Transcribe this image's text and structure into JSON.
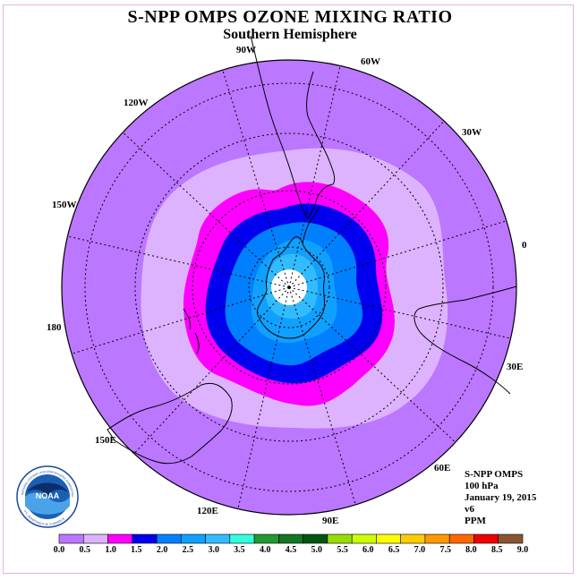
{
  "header": {
    "title": "S-NPP OMPS OZONE MIXING RATIO",
    "subtitle": "Southern Hemisphere"
  },
  "map": {
    "projection": "south polar stereographic",
    "longitude_labels": [
      "90W",
      "60W",
      "30W",
      "0",
      "30E",
      "60E",
      "90E",
      "120E",
      "150E",
      "180",
      "150W",
      "120W"
    ],
    "colors": {
      "outer": "#bb77ff",
      "band_0_5": "#ddb3ff",
      "band_1_0": "#ff00ff",
      "band_1_5": "#0000ee",
      "band_2_0": "#0080ff",
      "band_2_5": "#10a0ff",
      "band_3_0": "#33bbff",
      "pole": "#ffffff"
    }
  },
  "info": {
    "instrument": "S-NPP OMPS",
    "level": "100 hPa",
    "date": "January 19, 2015",
    "version": "v6",
    "units": "PPM"
  },
  "logo": {
    "text": "NOAA",
    "ring_text": "NATIONAL OCEANIC AND ATMOSPHERIC ADMINISTRATION",
    "ring_text_bottom": "U.S. DEPARTMENT OF COMMERCE"
  },
  "colorbar": {
    "labels": [
      "0.0",
      "0.5",
      "1.0",
      "1.5",
      "2.0",
      "2.5",
      "3.0",
      "3.5",
      "4.0",
      "4.5",
      "5.0",
      "5.5",
      "6.0",
      "6.5",
      "7.0",
      "7.5",
      "8.0",
      "8.5",
      "9.0"
    ],
    "colors": [
      "#bb77ff",
      "#ddb3ff",
      "#ff00ff",
      "#0000ee",
      "#0080ff",
      "#10a0ff",
      "#33bbff",
      "#33ffdd",
      "#229933",
      "#117722",
      "#005511",
      "#99dd00",
      "#ccff00",
      "#ffff00",
      "#ffcc00",
      "#ff9900",
      "#ff6600",
      "#ee0000",
      "#885533"
    ]
  }
}
